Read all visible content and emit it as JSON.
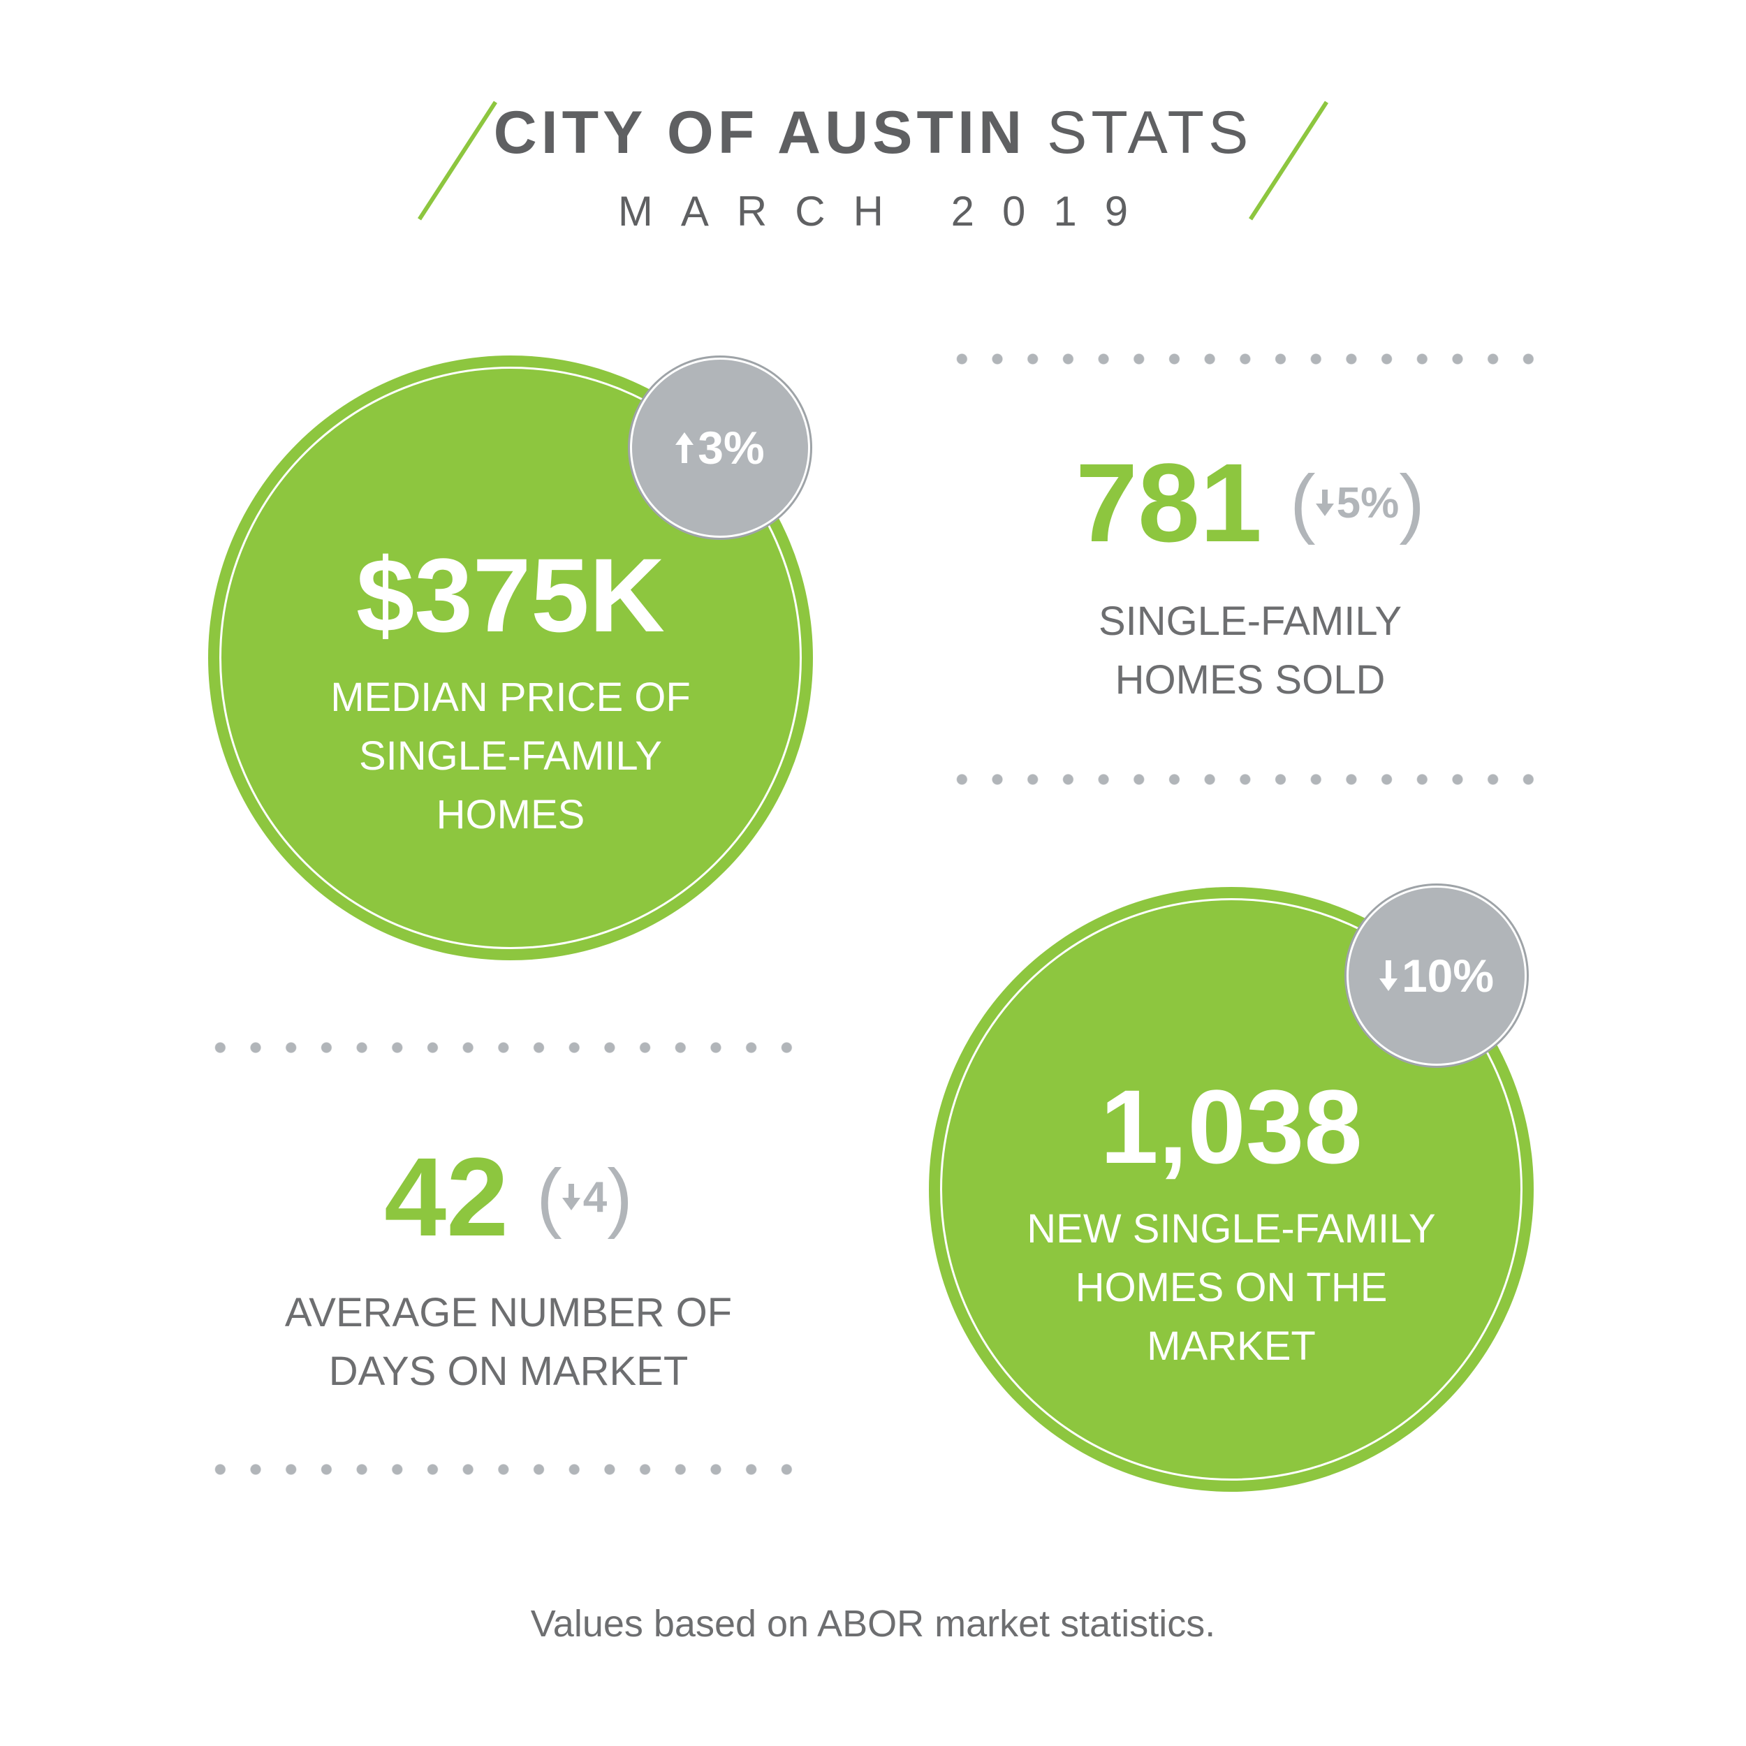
{
  "header": {
    "title_bold": "CITY OF AUSTIN",
    "title_light": "STATS",
    "subtitle": "MARCH 2019"
  },
  "colors": {
    "accent_green": "#8dc63f",
    "badge_gray": "#b1b5b9",
    "text_gray": "#6d6e70"
  },
  "stats": {
    "median_price": {
      "value": "$375K",
      "label_lines": [
        "MEDIAN PRICE OF",
        "SINGLE-FAMILY",
        "HOMES"
      ],
      "change": "3%",
      "change_direction": "up"
    },
    "homes_sold": {
      "value": "781",
      "label_lines": [
        "SINGLE-FAMILY",
        "HOMES SOLD"
      ],
      "change": "5%",
      "change_direction": "down"
    },
    "days_on_market": {
      "value": "42",
      "label_lines": [
        "AVERAGE NUMBER OF",
        "DAYS ON MARKET"
      ],
      "change": "4",
      "change_direction": "down"
    },
    "new_listings": {
      "value": "1,038",
      "label_lines": [
        "NEW SINGLE-FAMILY",
        "HOMES ON THE",
        "MARKET"
      ],
      "change": "10%",
      "change_direction": "down"
    }
  },
  "footer": {
    "note": "Values based on ABOR market statistics."
  }
}
